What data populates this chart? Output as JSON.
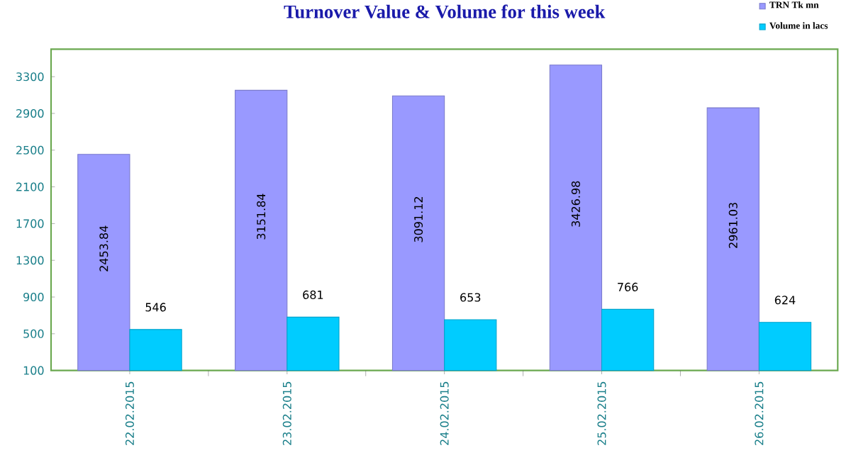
{
  "chart_data": {
    "type": "bar",
    "title": "Turnover Value & Volume for this week",
    "categories": [
      "22.02.2015",
      "23.02.2015",
      "24.02.2015",
      "25.02.2015",
      "26.02.2015"
    ],
    "series": [
      {
        "name": "TRN Tk mn",
        "color": "#9999ff",
        "values": [
          2453.84,
          3151.84,
          3091.12,
          3426.98,
          2961.03
        ]
      },
      {
        "name": "Volume in lacs",
        "color": "#00ccff",
        "values": [
          546,
          681,
          653,
          766,
          624
        ]
      }
    ],
    "ylim": [
      100,
      3600
    ],
    "yticks": [
      100,
      500,
      900,
      1300,
      1700,
      2100,
      2500,
      2900,
      3300
    ],
    "grid": false,
    "legend": "top right",
    "data_labels": true
  }
}
